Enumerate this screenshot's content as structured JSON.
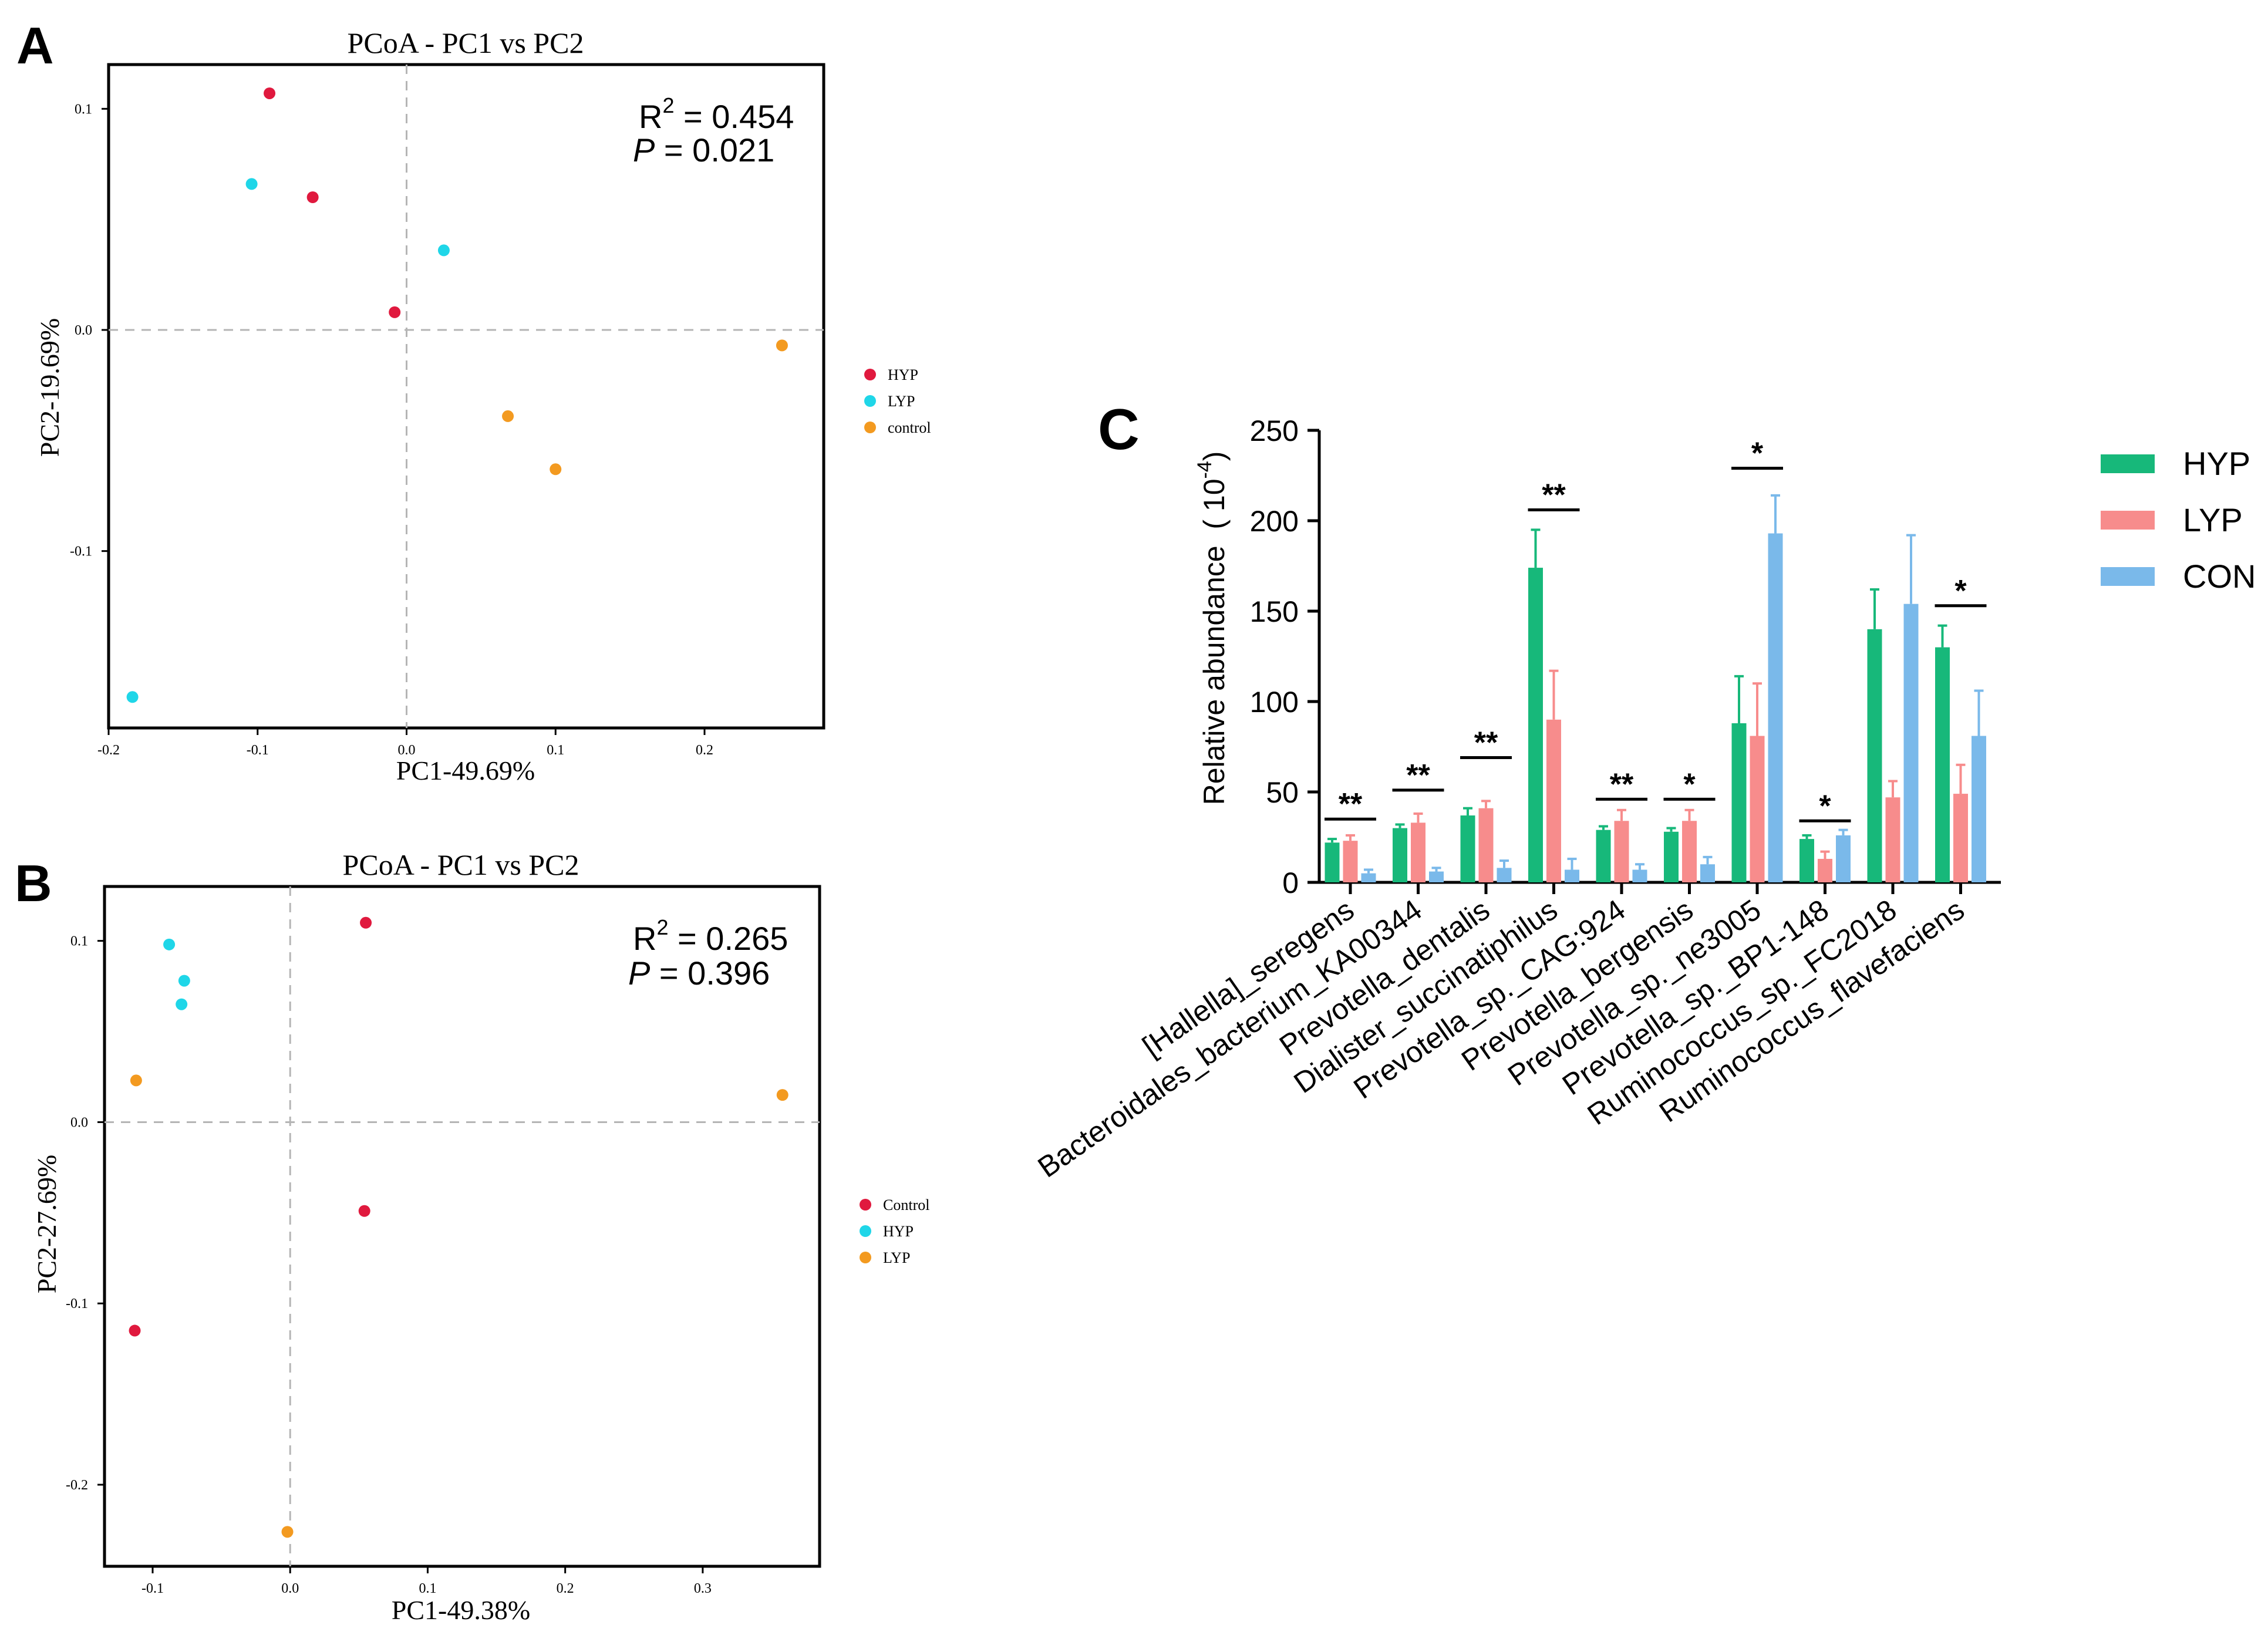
{
  "chart_data": [
    {
      "panel_label": "A",
      "type": "scatter",
      "title": "PCoA - PC1 vs PC2",
      "xlabel": "PC1-49.69%",
      "ylabel": "PC2-19.69%",
      "xlim": [
        -0.2,
        0.28
      ],
      "ylim": [
        -0.18,
        0.12
      ],
      "x_ticks": [
        -0.2,
        -0.1,
        0.0,
        0.1,
        0.2
      ],
      "x_tick_labels": [
        "-0.2",
        "-0.1",
        "0.0",
        "0.1",
        "0.2"
      ],
      "y_ticks": [
        -0.1,
        0.0,
        0.1
      ],
      "y_tick_labels": [
        "-0.1",
        "0.0",
        "0.1"
      ],
      "stat_r2_prefix": "R",
      "stat_r2_sup": "2",
      "stat_r2_value": " = 0.454",
      "stat_p_prefix": "P",
      "stat_p_value": " = 0.021",
      "legend_position": "right",
      "series": [
        {
          "name": "HYP",
          "color": "#e0193e",
          "points": [
            [
              -0.092,
              0.107
            ],
            [
              -0.063,
              0.06
            ],
            [
              -0.008,
              0.008
            ]
          ]
        },
        {
          "name": "LYP",
          "color": "#1fd6e8",
          "points": [
            [
              -0.104,
              0.066
            ],
            [
              0.025,
              0.036
            ],
            [
              -0.184,
              -0.166
            ]
          ]
        },
        {
          "name": "control",
          "color": "#f39a20",
          "points": [
            [
              0.252,
              -0.007
            ],
            [
              0.068,
              -0.039
            ],
            [
              0.1,
              -0.063
            ]
          ]
        }
      ]
    },
    {
      "panel_label": "B",
      "type": "scatter",
      "title": "PCoA - PC1 vs PC2",
      "xlabel": "PC1-49.38%",
      "ylabel": "PC2-27.69%",
      "xlim": [
        -0.135,
        0.385
      ],
      "ylim": [
        -0.245,
        0.13
      ],
      "x_ticks": [
        -0.1,
        0.0,
        0.1,
        0.2,
        0.3
      ],
      "x_tick_labels": [
        "-0.1",
        "0.0",
        "0.1",
        "0.2",
        "0.3"
      ],
      "y_ticks": [
        -0.2,
        -0.1,
        0.0,
        0.1
      ],
      "y_tick_labels": [
        "-0.2",
        "-0.1",
        "0.0",
        "0.1"
      ],
      "stat_r2_prefix": "R",
      "stat_r2_sup": "2",
      "stat_r2_value": " = 0.265",
      "stat_p_prefix": "P",
      "stat_p_value": " = 0.396",
      "legend_position": "right",
      "series": [
        {
          "name": "Control",
          "color": "#e0193e",
          "points": [
            [
              0.055,
              0.11
            ],
            [
              0.054,
              -0.049
            ],
            [
              -0.113,
              -0.115
            ]
          ]
        },
        {
          "name": "HYP",
          "color": "#1fd6e8",
          "points": [
            [
              -0.088,
              0.098
            ],
            [
              -0.077,
              0.078
            ],
            [
              -0.079,
              0.065
            ]
          ]
        },
        {
          "name": "LYP",
          "color": "#f39a20",
          "points": [
            [
              -0.112,
              0.023
            ],
            [
              0.358,
              0.015
            ],
            [
              -0.002,
              -0.226
            ]
          ]
        }
      ]
    },
    {
      "panel_label": "C",
      "type": "bar",
      "title": "",
      "xlabel": "",
      "ylabel_main": "Relative abundance  ( 10",
      "ylabel_sup": "-4",
      "ylabel_close": ")",
      "ylim": [
        0,
        250
      ],
      "y_ticks": [
        0,
        50,
        100,
        150,
        200,
        250
      ],
      "y_tick_labels": [
        "0",
        "50",
        "100",
        "150",
        "200",
        "250"
      ],
      "legend_position": "top-right",
      "categories": [
        "[Hallella]_seregens",
        "Bacteroidales_bacterium_KA00344",
        "Prevotella_dentalis",
        "Dialister_succinatiphilus",
        "Prevotella_sp._CAG:924",
        "Prevotella_bergensis",
        "Prevotella_sp._ne3005",
        "Prevotella_sp._BP1-148",
        "Ruminococcus_sp._FC2018",
        "Ruminococcus_flavefaciens"
      ],
      "series": [
        {
          "name": "HYP",
          "color": "#17b87a",
          "values": [
            22,
            30,
            37,
            174,
            29,
            28,
            88,
            24,
            140,
            130
          ],
          "errors": [
            2,
            2,
            4,
            21,
            2,
            2,
            26,
            2,
            22,
            12
          ]
        },
        {
          "name": "LYP",
          "color": "#f78c8c",
          "values": [
            23,
            33,
            41,
            90,
            34,
            34,
            81,
            13,
            47,
            49
          ],
          "errors": [
            3,
            5,
            4,
            27,
            6,
            6,
            29,
            4,
            9,
            16
          ]
        },
        {
          "name": "CON",
          "color": "#7ab9ea",
          "values": [
            5,
            6,
            8,
            7,
            7,
            10,
            193,
            26,
            154,
            81
          ],
          "errors": [
            2,
            2,
            4,
            6,
            3,
            4,
            21,
            3,
            38,
            25
          ]
        }
      ],
      "significance": [
        {
          "label": "**",
          "value": 35,
          "from": 0,
          "to": 1
        },
        {
          "label": "**",
          "value": 51,
          "from": 0,
          "to": 1
        },
        {
          "label": "**",
          "value": 69,
          "from": 0,
          "to": 1
        },
        {
          "label": "**",
          "value": 206,
          "from": 0,
          "to": 1
        },
        {
          "label": "**",
          "value": 46,
          "from": 0,
          "to": 1
        },
        {
          "label": "*",
          "value": 46,
          "from": 0,
          "to": 1
        },
        {
          "label": "*",
          "value": 229,
          "from": 0,
          "to": 2
        },
        {
          "label": "*",
          "value": 34,
          "from": 0,
          "to": 2
        },
        {
          "label": "*",
          "value": 153,
          "from": 0,
          "to": 2
        }
      ],
      "significance_bars": [
        0,
        1,
        2,
        3,
        4,
        5,
        6,
        7,
        9
      ]
    }
  ]
}
